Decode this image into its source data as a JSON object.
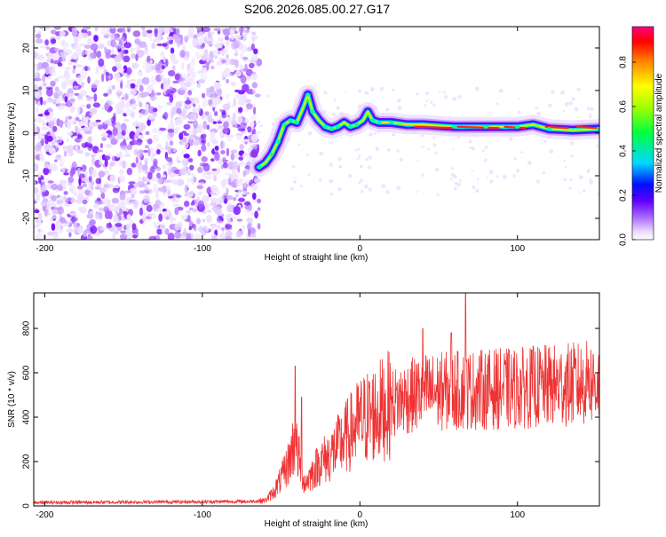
{
  "title": "S206.2026.085.00.27.G17",
  "chart_data": [
    {
      "type": "heatmap",
      "xlabel": "Height of straight line (km)",
      "ylabel": "Frequency (Hz)",
      "xlim": [
        -207,
        152
      ],
      "ylim": [
        -25,
        25
      ],
      "xticks": [
        -200,
        -100,
        0,
        100
      ],
      "yticks": [
        -20,
        -10,
        0,
        10,
        20
      ],
      "noise_region_x": [
        -207,
        -64
      ],
      "ridge": [
        [
          -64,
          -8
        ],
        [
          -60,
          -7
        ],
        [
          -56,
          -5
        ],
        [
          -52,
          -2
        ],
        [
          -48,
          2
        ],
        [
          -44,
          3
        ],
        [
          -40,
          2.5
        ],
        [
          -36,
          6
        ],
        [
          -33,
          9
        ],
        [
          -30,
          5
        ],
        [
          -26,
          3
        ],
        [
          -22,
          1.5
        ],
        [
          -18,
          1
        ],
        [
          -14,
          1.5
        ],
        [
          -10,
          2.5
        ],
        [
          -6,
          1.5
        ],
        [
          -2,
          2
        ],
        [
          2,
          3
        ],
        [
          5,
          5
        ],
        [
          8,
          3
        ],
        [
          12,
          2.5
        ],
        [
          20,
          2.5
        ],
        [
          30,
          2
        ],
        [
          40,
          2
        ],
        [
          60,
          1.5
        ],
        [
          80,
          1.5
        ],
        [
          100,
          1.5
        ],
        [
          110,
          2
        ],
        [
          120,
          1
        ],
        [
          135,
          0.7
        ],
        [
          152,
          1
        ]
      ],
      "colorbar": {
        "label": "Normalized spectral amplitude",
        "range": [
          0,
          0.96
        ],
        "ticks": [
          0.0,
          0.2,
          0.4,
          0.6,
          0.8
        ],
        "tick_labels": [
          "0.0",
          "0.2",
          "0.4",
          "0.6",
          "0.8"
        ]
      }
    },
    {
      "type": "line",
      "xlabel": "Height of straight line (km)",
      "ylabel": "SNR (10 * v/v)",
      "xlim": [
        -207,
        152
      ],
      "ylim": [
        0,
        960
      ],
      "xticks": [
        -200,
        -100,
        0,
        100
      ],
      "yticks": [
        0,
        200,
        400,
        600,
        800
      ],
      "color": "#ee3333",
      "trend": [
        [
          -207,
          15
        ],
        [
          -70,
          20
        ],
        [
          -60,
          25
        ],
        [
          -55,
          60
        ],
        [
          -50,
          120
        ],
        [
          -45,
          200
        ],
        [
          -42,
          280
        ],
        [
          -40,
          250
        ],
        [
          -35,
          100
        ],
        [
          -30,
          150
        ],
        [
          -25,
          200
        ],
        [
          -20,
          220
        ],
        [
          -15,
          260
        ],
        [
          -10,
          300
        ],
        [
          -5,
          340
        ],
        [
          0,
          380
        ],
        [
          10,
          420
        ],
        [
          20,
          460
        ],
        [
          30,
          490
        ],
        [
          40,
          510
        ],
        [
          60,
          520
        ],
        [
          80,
          525
        ],
        [
          100,
          530
        ],
        [
          120,
          540
        ],
        [
          140,
          550
        ],
        [
          152,
          560
        ]
      ],
      "spikes": [
        [
          -41,
          630
        ],
        [
          -37,
          490
        ],
        [
          67,
          960
        ],
        [
          58,
          780
        ],
        [
          40,
          800
        ],
        [
          110,
          720
        ],
        [
          145,
          660
        ]
      ]
    }
  ],
  "colors": {
    "line": "#ee3333",
    "noise_light": "#e8d8ff",
    "noise_dark": "#8a30f0",
    "ridge_core": "#ff2020"
  }
}
